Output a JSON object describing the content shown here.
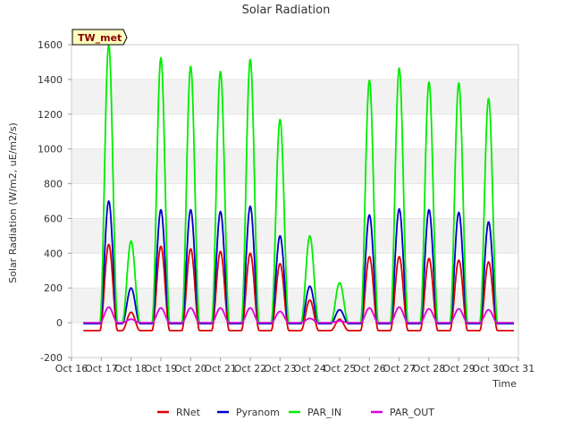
{
  "chart_data": {
    "type": "line",
    "title": "Solar Radiation",
    "xlabel": "Time",
    "ylabel": "Solar Radiation (W/m2, uE/m2/s)",
    "xlim": [
      16,
      31
    ],
    "ylim": [
      -200,
      1600
    ],
    "x_ticks": [
      {
        "value": 16,
        "label": "Oct 16"
      },
      {
        "value": 17,
        "label": "Oct 17"
      },
      {
        "value": 18,
        "label": "Oct 18"
      },
      {
        "value": 19,
        "label": "Oct 19"
      },
      {
        "value": 20,
        "label": "Oct 20"
      },
      {
        "value": 21,
        "label": "Oct 21"
      },
      {
        "value": 22,
        "label": "Oct 22"
      },
      {
        "value": 23,
        "label": "Oct 23"
      },
      {
        "value": 24,
        "label": "Oct 24"
      },
      {
        "value": 25,
        "label": "Oct 25"
      },
      {
        "value": 26,
        "label": "Oct 26"
      },
      {
        "value": 27,
        "label": "Oct 27"
      },
      {
        "value": 28,
        "label": "Oct 28"
      },
      {
        "value": 29,
        "label": "Oct 29"
      },
      {
        "value": 30,
        "label": "Oct 30"
      },
      {
        "value": 31,
        "label": "Oct 31"
      }
    ],
    "y_ticks": [
      -200,
      0,
      200,
      400,
      600,
      800,
      1000,
      1200,
      1400,
      1600
    ],
    "annotation": "TW_met",
    "grid": "horizontal bands",
    "legend_position": "bottom",
    "series": [
      {
        "name": "RNet",
        "color": "#dd0000",
        "night_value": -45,
        "peaks": [
          [
            17.25,
            450
          ],
          [
            18.0,
            60
          ],
          [
            19.0,
            440
          ],
          [
            20.0,
            425
          ],
          [
            21.0,
            410
          ],
          [
            22.0,
            400
          ],
          [
            23.0,
            340
          ],
          [
            24.0,
            130
          ],
          [
            25.0,
            20
          ],
          [
            26.0,
            380
          ],
          [
            27.0,
            380
          ],
          [
            28.0,
            370
          ],
          [
            29.0,
            360
          ],
          [
            30.0,
            350
          ]
        ]
      },
      {
        "name": "Pyranom",
        "color": "#0000cc",
        "night_value": -5,
        "peaks": [
          [
            17.25,
            700
          ],
          [
            18.0,
            200
          ],
          [
            19.0,
            650
          ],
          [
            20.0,
            650
          ],
          [
            21.0,
            640
          ],
          [
            22.0,
            670
          ],
          [
            23.0,
            500
          ],
          [
            24.0,
            210
          ],
          [
            25.0,
            75
          ],
          [
            26.0,
            620
          ],
          [
            27.0,
            655
          ],
          [
            28.0,
            650
          ],
          [
            29.0,
            635
          ],
          [
            30.0,
            580
          ]
        ]
      },
      {
        "name": "PAR_IN",
        "color": "#00ee00",
        "night_value": 0,
        "peaks": [
          [
            17.25,
            1600
          ],
          [
            18.0,
            470
          ],
          [
            19.0,
            1525
          ],
          [
            20.0,
            1475
          ],
          [
            21.0,
            1445
          ],
          [
            22.0,
            1515
          ],
          [
            23.0,
            1170
          ],
          [
            24.0,
            500
          ],
          [
            25.0,
            230
          ],
          [
            26.0,
            1395
          ],
          [
            27.0,
            1465
          ],
          [
            28.0,
            1385
          ],
          [
            29.0,
            1380
          ],
          [
            30.0,
            1290
          ]
        ]
      },
      {
        "name": "PAR_OUT",
        "color": "#dd00dd",
        "night_value": 0,
        "peaks": [
          [
            17.25,
            90
          ],
          [
            18.0,
            20
          ],
          [
            19.0,
            85
          ],
          [
            20.0,
            85
          ],
          [
            21.0,
            85
          ],
          [
            22.0,
            85
          ],
          [
            23.0,
            65
          ],
          [
            24.0,
            25
          ],
          [
            25.0,
            10
          ],
          [
            26.0,
            85
          ],
          [
            27.0,
            90
          ],
          [
            28.0,
            80
          ],
          [
            29.0,
            80
          ],
          [
            30.0,
            75
          ]
        ]
      }
    ]
  }
}
